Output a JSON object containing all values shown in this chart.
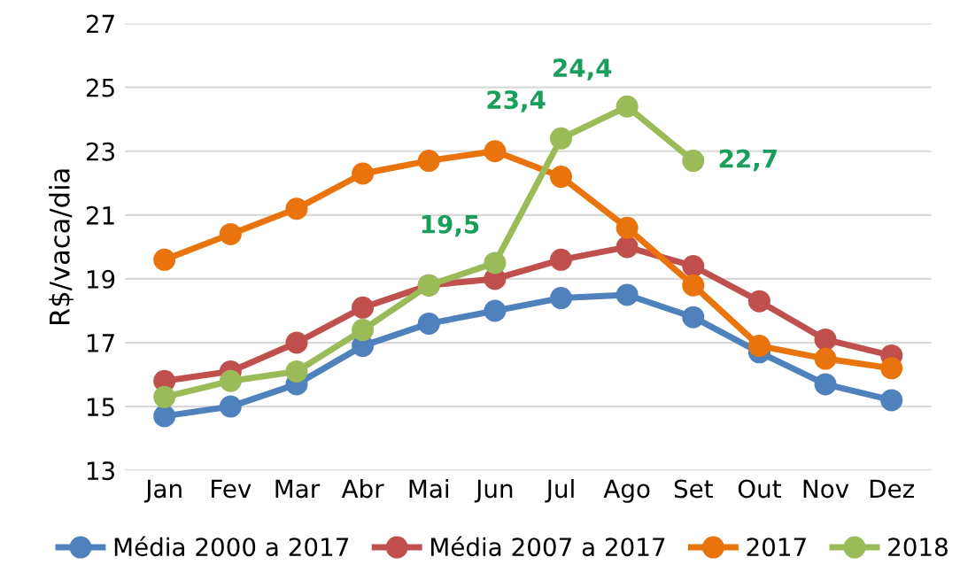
{
  "chart_data": {
    "type": "line",
    "ylabel": "R$/vaca/dia",
    "categories": [
      "Jan",
      "Fev",
      "Mar",
      "Abr",
      "Mai",
      "Jun",
      "Jul",
      "Ago",
      "Set",
      "Out",
      "Nov",
      "Dez"
    ],
    "series": [
      {
        "name": "Média 2000 a 2017",
        "color": "#4f81bd",
        "values": [
          14.7,
          15.0,
          15.7,
          16.9,
          17.6,
          18.0,
          18.4,
          18.5,
          17.8,
          16.7,
          15.7,
          15.2
        ]
      },
      {
        "name": "Média 2007 a 2017",
        "color": "#c0504d",
        "values": [
          15.8,
          16.1,
          17.0,
          18.1,
          18.8,
          19.0,
          19.6,
          20.0,
          19.4,
          18.3,
          17.1,
          16.6
        ]
      },
      {
        "name": "2017",
        "color": "#e9730c",
        "values": [
          19.6,
          20.4,
          21.2,
          22.3,
          22.7,
          23.0,
          22.2,
          20.6,
          18.8,
          16.9,
          16.5,
          16.2
        ]
      },
      {
        "name": "2018",
        "color": "#9bbb59",
        "values": [
          15.3,
          15.8,
          16.1,
          17.4,
          18.8,
          19.5,
          23.4,
          24.4,
          22.7,
          null,
          null,
          null
        ],
        "value_labels": [
          null,
          null,
          null,
          null,
          null,
          "19,5",
          "23,4",
          "24,4",
          "22,7",
          null,
          null,
          null
        ]
      }
    ],
    "ylim": [
      13,
      27
    ],
    "yticks": [
      13,
      15,
      17,
      19,
      21,
      23,
      25,
      27
    ],
    "grid": "y",
    "legend": "bottom",
    "marker": "circle",
    "line_style": "solid"
  }
}
